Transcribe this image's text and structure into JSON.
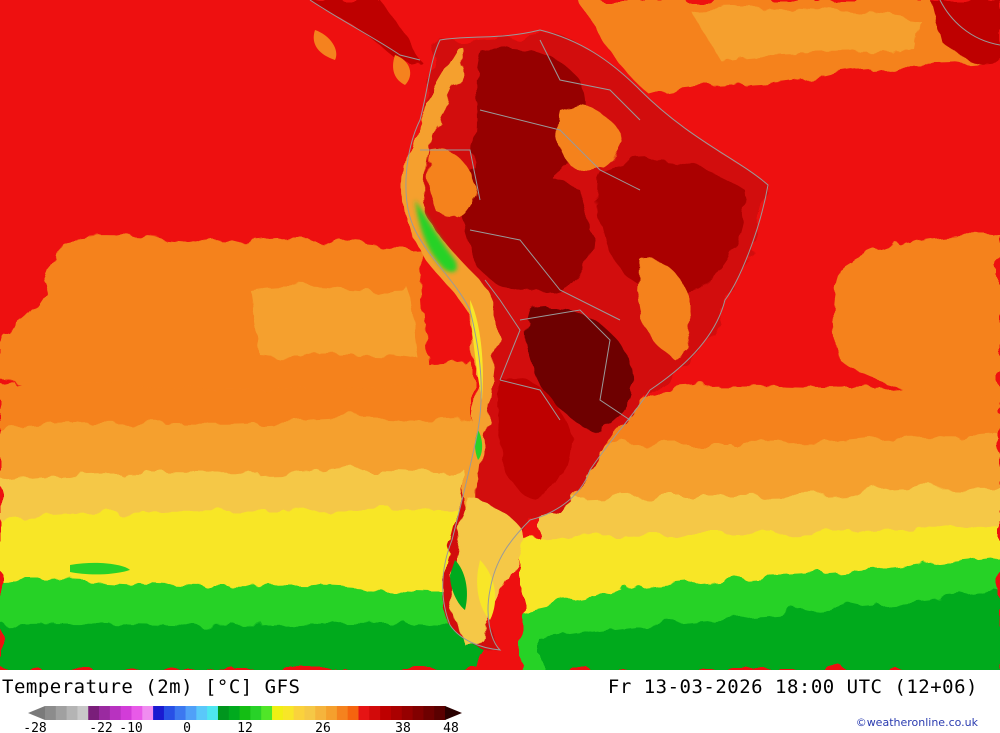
{
  "map": {
    "title": "Temperature (2m) [°C] GFS",
    "valid_time": "Fr 13-03-2026 18:00 UTC (12+06)",
    "credit": "©weatheronline.co.uk",
    "legend": {
      "tick_labels": [
        "-28",
        "-22",
        "-10",
        "0",
        "12",
        "26",
        "38",
        "48"
      ],
      "colors": [
        "#8c8c8c",
        "#a0a0a0",
        "#b4b4b4",
        "#c8c8c8",
        "#7a1e7a",
        "#9a2aa0",
        "#b832c0",
        "#d23cd8",
        "#e85ae8",
        "#f08cf0",
        "#1a1ad0",
        "#2850e6",
        "#3c78f0",
        "#50a0f8",
        "#5ac8fa",
        "#4ee6f0",
        "#00961e",
        "#00aa1e",
        "#14be14",
        "#28d228",
        "#50e628",
        "#f0f014",
        "#f8e628",
        "#fad23c",
        "#f5c846",
        "#f5b43c",
        "#f5a02d",
        "#f5821e",
        "#f5640f",
        "#e61414",
        "#d20a0a",
        "#be0000",
        "#aa0000",
        "#960000",
        "#820000",
        "#6e0000",
        "#5a0000"
      ]
    }
  }
}
